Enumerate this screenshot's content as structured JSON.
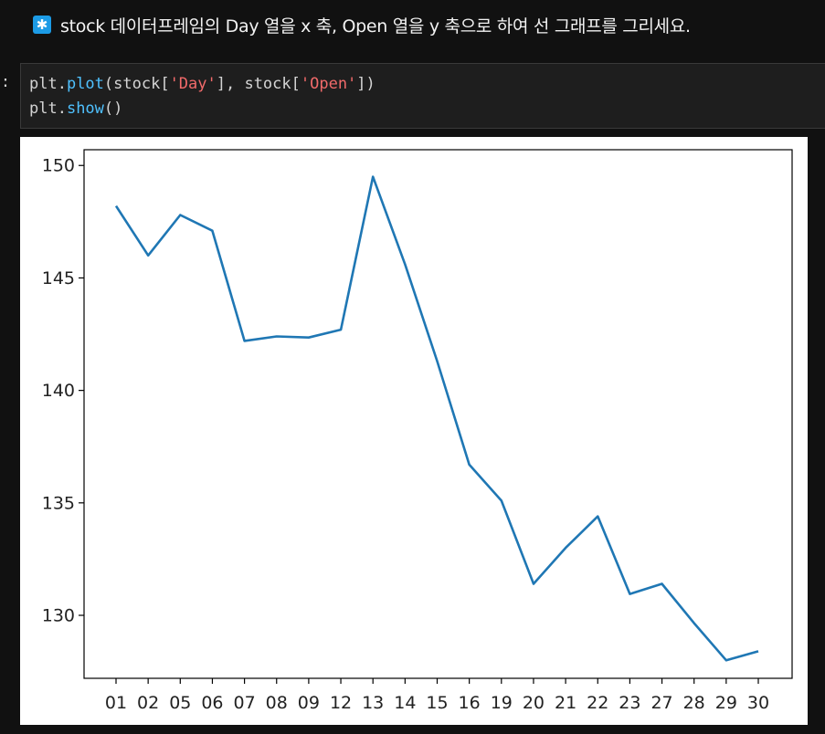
{
  "markdown": {
    "icon": "asterisk-icon",
    "icon_glyph": "✱",
    "text": "stock 데이터프레임의 Day 열을 x 축, Open 열을 y 축으로 하여 선 그래프를 그리세요."
  },
  "code_cell": {
    "prompt": ":",
    "line1": {
      "a": "plt.",
      "fn": "plot",
      "b": "(stock[",
      "s1": "'Day'",
      "c": "], stock[",
      "s2": "'Open'",
      "d": "])"
    },
    "line2": {
      "a": "plt.",
      "fn": "show",
      "b": "()"
    }
  },
  "chart_data": {
    "type": "line",
    "categories": [
      "01",
      "02",
      "05",
      "06",
      "07",
      "08",
      "09",
      "12",
      "13",
      "14",
      "15",
      "16",
      "19",
      "20",
      "21",
      "22",
      "23",
      "27",
      "28",
      "29",
      "30"
    ],
    "series": [
      {
        "values": [
          148.2,
          146.0,
          147.8,
          147.1,
          142.2,
          142.4,
          142.35,
          142.7,
          149.5,
          145.6,
          141.3,
          136.7,
          135.1,
          131.4,
          133.0,
          134.4,
          130.95,
          131.4,
          129.65,
          128.0,
          128.4
        ],
        "color": "#1f77b4"
      }
    ],
    "yticks": [
      130,
      135,
      140,
      145,
      150
    ],
    "ylim": [
      127.2,
      150.7
    ],
    "xlabel": "",
    "ylabel": "",
    "title": "",
    "grid": false
  }
}
